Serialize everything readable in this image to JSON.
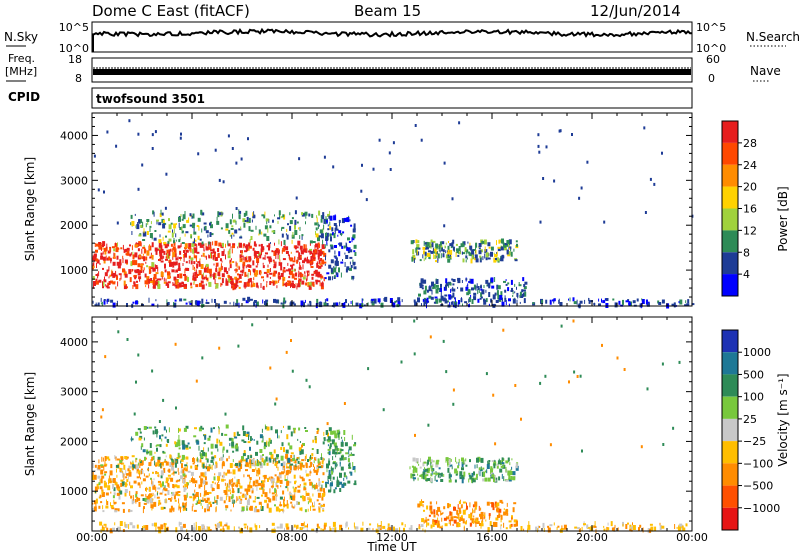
{
  "header": {
    "station": "Dome C East (fitACF)",
    "beam": "Beam 15",
    "date": "12/Jun/2014"
  },
  "status_panel": {
    "nsky_label": "N.Sky",
    "nsky_ticks": [
      "10^5",
      "10^0"
    ],
    "nsearch_label": "N.Search",
    "nsearch_ticks": [
      "10^5",
      "10^0"
    ],
    "freq_label": "Freq.",
    "freq_unit": "[MHz]",
    "freq_ticks": [
      "18",
      "8"
    ],
    "nave_label": "Nave",
    "nave_ticks": [
      "60",
      "0"
    ],
    "cpid_label": "CPID",
    "cpid_value": "twofsound 3501"
  },
  "chart_data": [
    {
      "type": "heatmap",
      "parameter": "power",
      "ylabel": "Slant Range [km]",
      "xlabel": "Time UT",
      "xlim": [
        0,
        24
      ],
      "ylim": [
        200,
        4500
      ],
      "yticks": [
        1000,
        2000,
        3000,
        4000
      ],
      "colorbar": {
        "label": "Power [dB]",
        "ticks": [
          "28",
          "24",
          "20",
          "16",
          "12",
          "8",
          "4"
        ],
        "colors": [
          "#e61e1e",
          "#ff4800",
          "#ff8c00",
          "#ffd200",
          "#a0d23c",
          "#2e8b57",
          "#1e3c96",
          "#0000ff"
        ]
      },
      "regions": [
        {
          "t0": 0.0,
          "t1": 9.3,
          "r0": 600,
          "r1": 1600,
          "level": "24-32 dB"
        },
        {
          "t0": 1.5,
          "t1": 9.5,
          "r0": 1600,
          "r1": 2300,
          "level": "4-16 dB"
        },
        {
          "t0": 9.3,
          "t1": 10.5,
          "r0": 800,
          "r1": 2200,
          "level": "4-12 dB"
        },
        {
          "t0": 12.7,
          "t1": 17.0,
          "r0": 1200,
          "r1": 1650,
          "level": "4-20 dB"
        },
        {
          "t0": 13.0,
          "t1": 17.3,
          "r0": 300,
          "r1": 800,
          "level": "4-12 dB"
        },
        {
          "t0": 0.0,
          "t1": 24.0,
          "r0": 200,
          "r1": 350,
          "level": "4-12 dB"
        }
      ]
    },
    {
      "type": "heatmap",
      "parameter": "velocity",
      "ylabel": "Slant Range [km]",
      "xlabel": "Time UT",
      "xlim": [
        0,
        24
      ],
      "ylim": [
        200,
        4500
      ],
      "yticks": [
        1000,
        2000,
        3000,
        4000
      ],
      "colorbar": {
        "label": "Velocity [m s⁻¹]",
        "ticks": [
          "1000",
          "500",
          "100",
          "25",
          "−25",
          "−100",
          "−500",
          "−1000"
        ],
        "colors": [
          "#1e32b4",
          "#1e7896",
          "#2e8b57",
          "#78c83c",
          "#c8c8c8",
          "#ffbe00",
          "#ff8c00",
          "#ff5000",
          "#e61414"
        ]
      },
      "regions": [
        {
          "t0": 0.0,
          "t1": 9.3,
          "r0": 600,
          "r1": 1700,
          "level": "-25 to -500 m/s"
        },
        {
          "t0": 1.5,
          "t1": 9.5,
          "r0": 1500,
          "r1": 2300,
          "level": "25-500 m/s"
        },
        {
          "t0": 9.3,
          "t1": 10.5,
          "r0": 1000,
          "r1": 2200,
          "level": "25-100 m/s"
        },
        {
          "t0": 12.7,
          "t1": 17.0,
          "r0": 1200,
          "r1": 1650,
          "level": "25-500 m/s"
        },
        {
          "t0": 13.0,
          "t1": 17.0,
          "r0": 300,
          "r1": 800,
          "level": "-100 to -500 m/s"
        },
        {
          "t0": 0.0,
          "t1": 24.0,
          "r0": 200,
          "r1": 350,
          "level": "-25 to -100 m/s"
        }
      ]
    }
  ],
  "time_axis": {
    "label": "Time UT",
    "ticks": [
      "00:00",
      "04:00",
      "08:00",
      "12:00",
      "16:00",
      "20:00",
      "00:00"
    ]
  }
}
